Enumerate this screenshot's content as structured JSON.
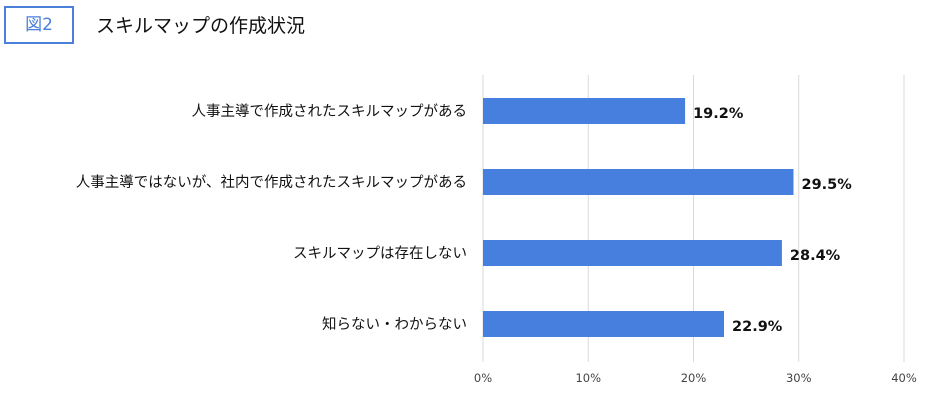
{
  "figure": {
    "badge": "図2",
    "title": "スキルマップの作成状況"
  },
  "chart_data": {
    "type": "bar",
    "orientation": "horizontal",
    "categories": [
      "人事主導で作成されたスキルマップがある",
      "人事主導ではないが、社内で作成されたスキルマップがある",
      "スキルマップは存在しない",
      "知らない・わからない"
    ],
    "values": [
      19.2,
      29.5,
      28.4,
      22.9
    ],
    "value_labels": [
      "19.2%",
      "29.5%",
      "28.4%",
      "22.9%"
    ],
    "xlim": [
      0,
      40
    ],
    "ticks": [
      0,
      10,
      20,
      30,
      40
    ],
    "tick_labels": [
      "0%",
      "10%",
      "20%",
      "30%",
      "40%"
    ],
    "grid": true,
    "bar_color": "#477fdf",
    "grid_color": "#d9d9d9"
  }
}
